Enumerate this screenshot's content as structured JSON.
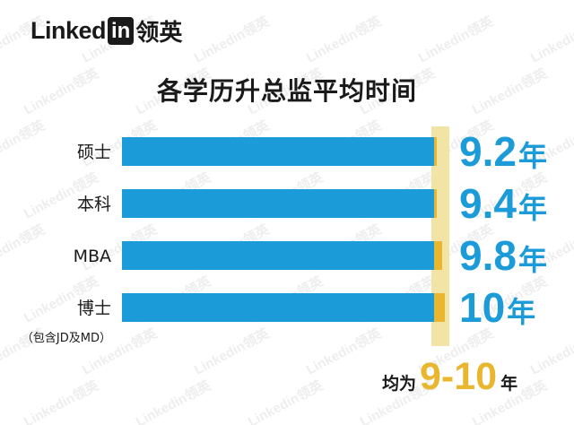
{
  "brand": {
    "word": "Linked",
    "in": "in",
    "cn": "领英"
  },
  "colors": {
    "bar": "#1b9bd7",
    "highlight": "#f2e4a5",
    "marker": "#e9b72f",
    "value": "#1b9bd7",
    "text": "#1a1a1a"
  },
  "chart_data": {
    "type": "bar",
    "orientation": "horizontal",
    "title": "各学历升总监平均时间",
    "categories": [
      "硕士",
      "本科",
      "MBA",
      "博士"
    ],
    "category_notes": [
      "",
      "",
      "",
      "（包含JD及MD）"
    ],
    "values": [
      9.2,
      9.4,
      9.8,
      10
    ],
    "value_labels": [
      "9.2",
      "9.4",
      "9.8",
      "10"
    ],
    "unit": "年",
    "highlight_range": [
      9,
      10
    ],
    "legend": "none",
    "grid": false
  },
  "footer": {
    "prefix": "均为",
    "range": "9-10",
    "suffix": "年"
  }
}
